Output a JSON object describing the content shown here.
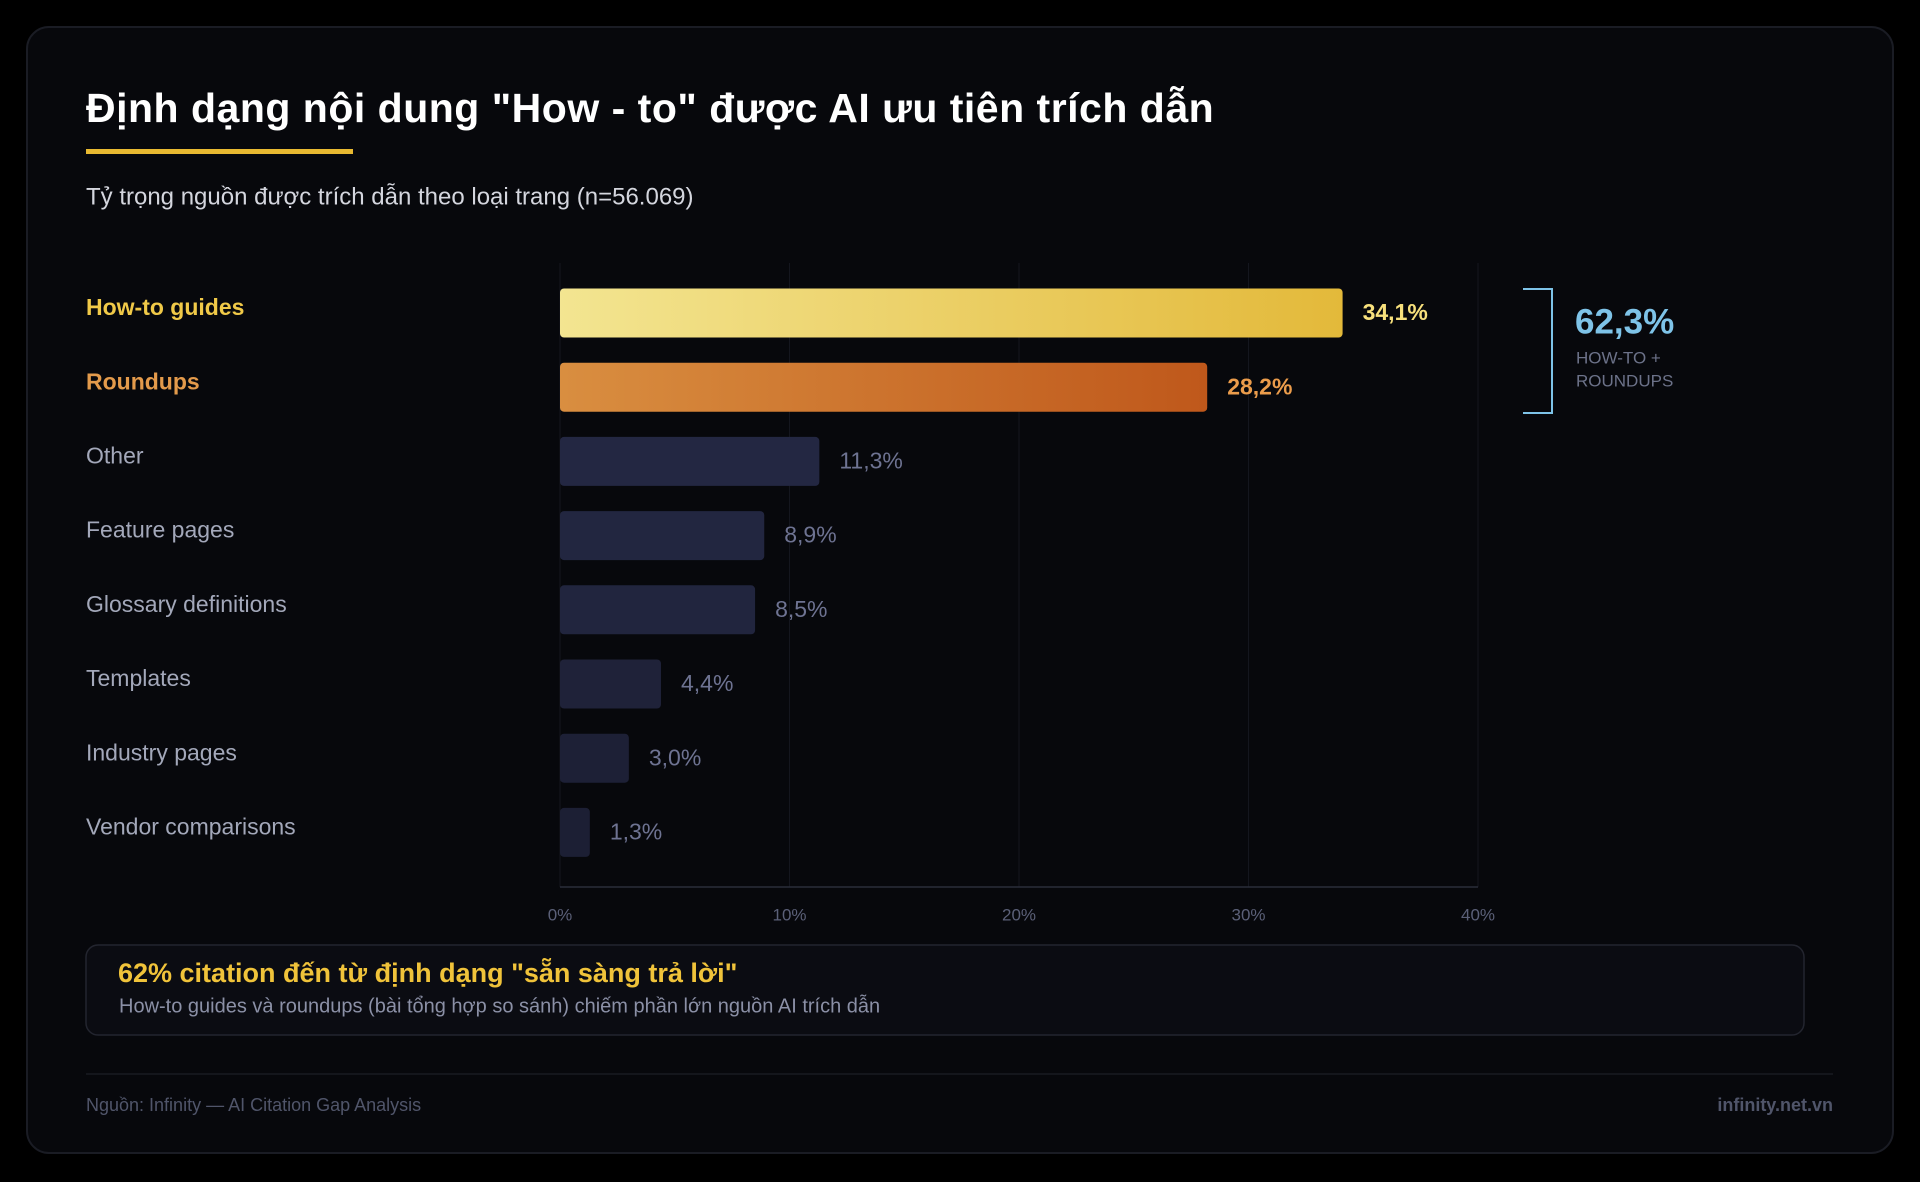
{
  "chart_data": {
    "type": "hbar",
    "title": "Định dạng nội dung \"How - to\" được AI ưu tiên trích dẫn",
    "subtitle": "Tỷ trọng nguồn được trích dẫn theo loại trang (n=56.069)",
    "categories": [
      "How-to guides",
      "Roundups",
      "Other",
      "Feature pages",
      "Glossary definitions",
      "Templates",
      "Industry pages",
      "Vendor comparisons"
    ],
    "values": [
      34.1,
      28.2,
      11.3,
      8.9,
      8.5,
      4.4,
      3.0,
      1.3
    ],
    "value_labels": [
      "34,1%",
      "28,2%",
      "11,3%",
      "8,9%",
      "8,5%",
      "4,4%",
      "3,0%",
      "1,3%"
    ],
    "colors": [
      [
        "#f3e591",
        "#e3b93a"
      ],
      [
        "#d98e40",
        "#bf581b"
      ],
      "#232742",
      "#222640",
      "#21253e",
      "#1f2239",
      "#1d2036",
      "#1c1f34"
    ],
    "label_colors": [
      "#f0c948",
      "#e39a4b",
      "#a3a8ba",
      "#a3a8ba",
      "#a3a8ba",
      "#a3a8ba",
      "#a3a8ba",
      "#a3a8ba"
    ],
    "value_label_colors": [
      "#f7e07c",
      "#eb9c4b",
      "#6e7392",
      "#6e7392",
      "#6e7392",
      "#6e7392",
      "#6e7392",
      "#6e7392"
    ],
    "xlim": [
      0,
      40
    ],
    "xticks": [
      {
        "value": 0,
        "label": "0%"
      },
      {
        "value": 10,
        "label": "10%"
      },
      {
        "value": 20,
        "label": "20%"
      },
      {
        "value": 30,
        "label": "30%"
      },
      {
        "value": 40,
        "label": "40%"
      }
    ],
    "grid": true,
    "bracket": {
      "total": "62,3%",
      "lines": [
        "HOW-TO +",
        "ROUNDUPS"
      ],
      "color": "#7ec3e8"
    },
    "callout": {
      "title": "62% citation đến từ định dạng \"sẵn sàng trả lời\"",
      "text": "How-to guides và roundups (bài tổng hợp so sánh) chiếm phần lớn nguồn AI trích dẫn"
    },
    "footer": {
      "source": "Nguồn: Infinity — AI Citation Gap Analysis",
      "brand": "infinity.net.vn"
    }
  }
}
